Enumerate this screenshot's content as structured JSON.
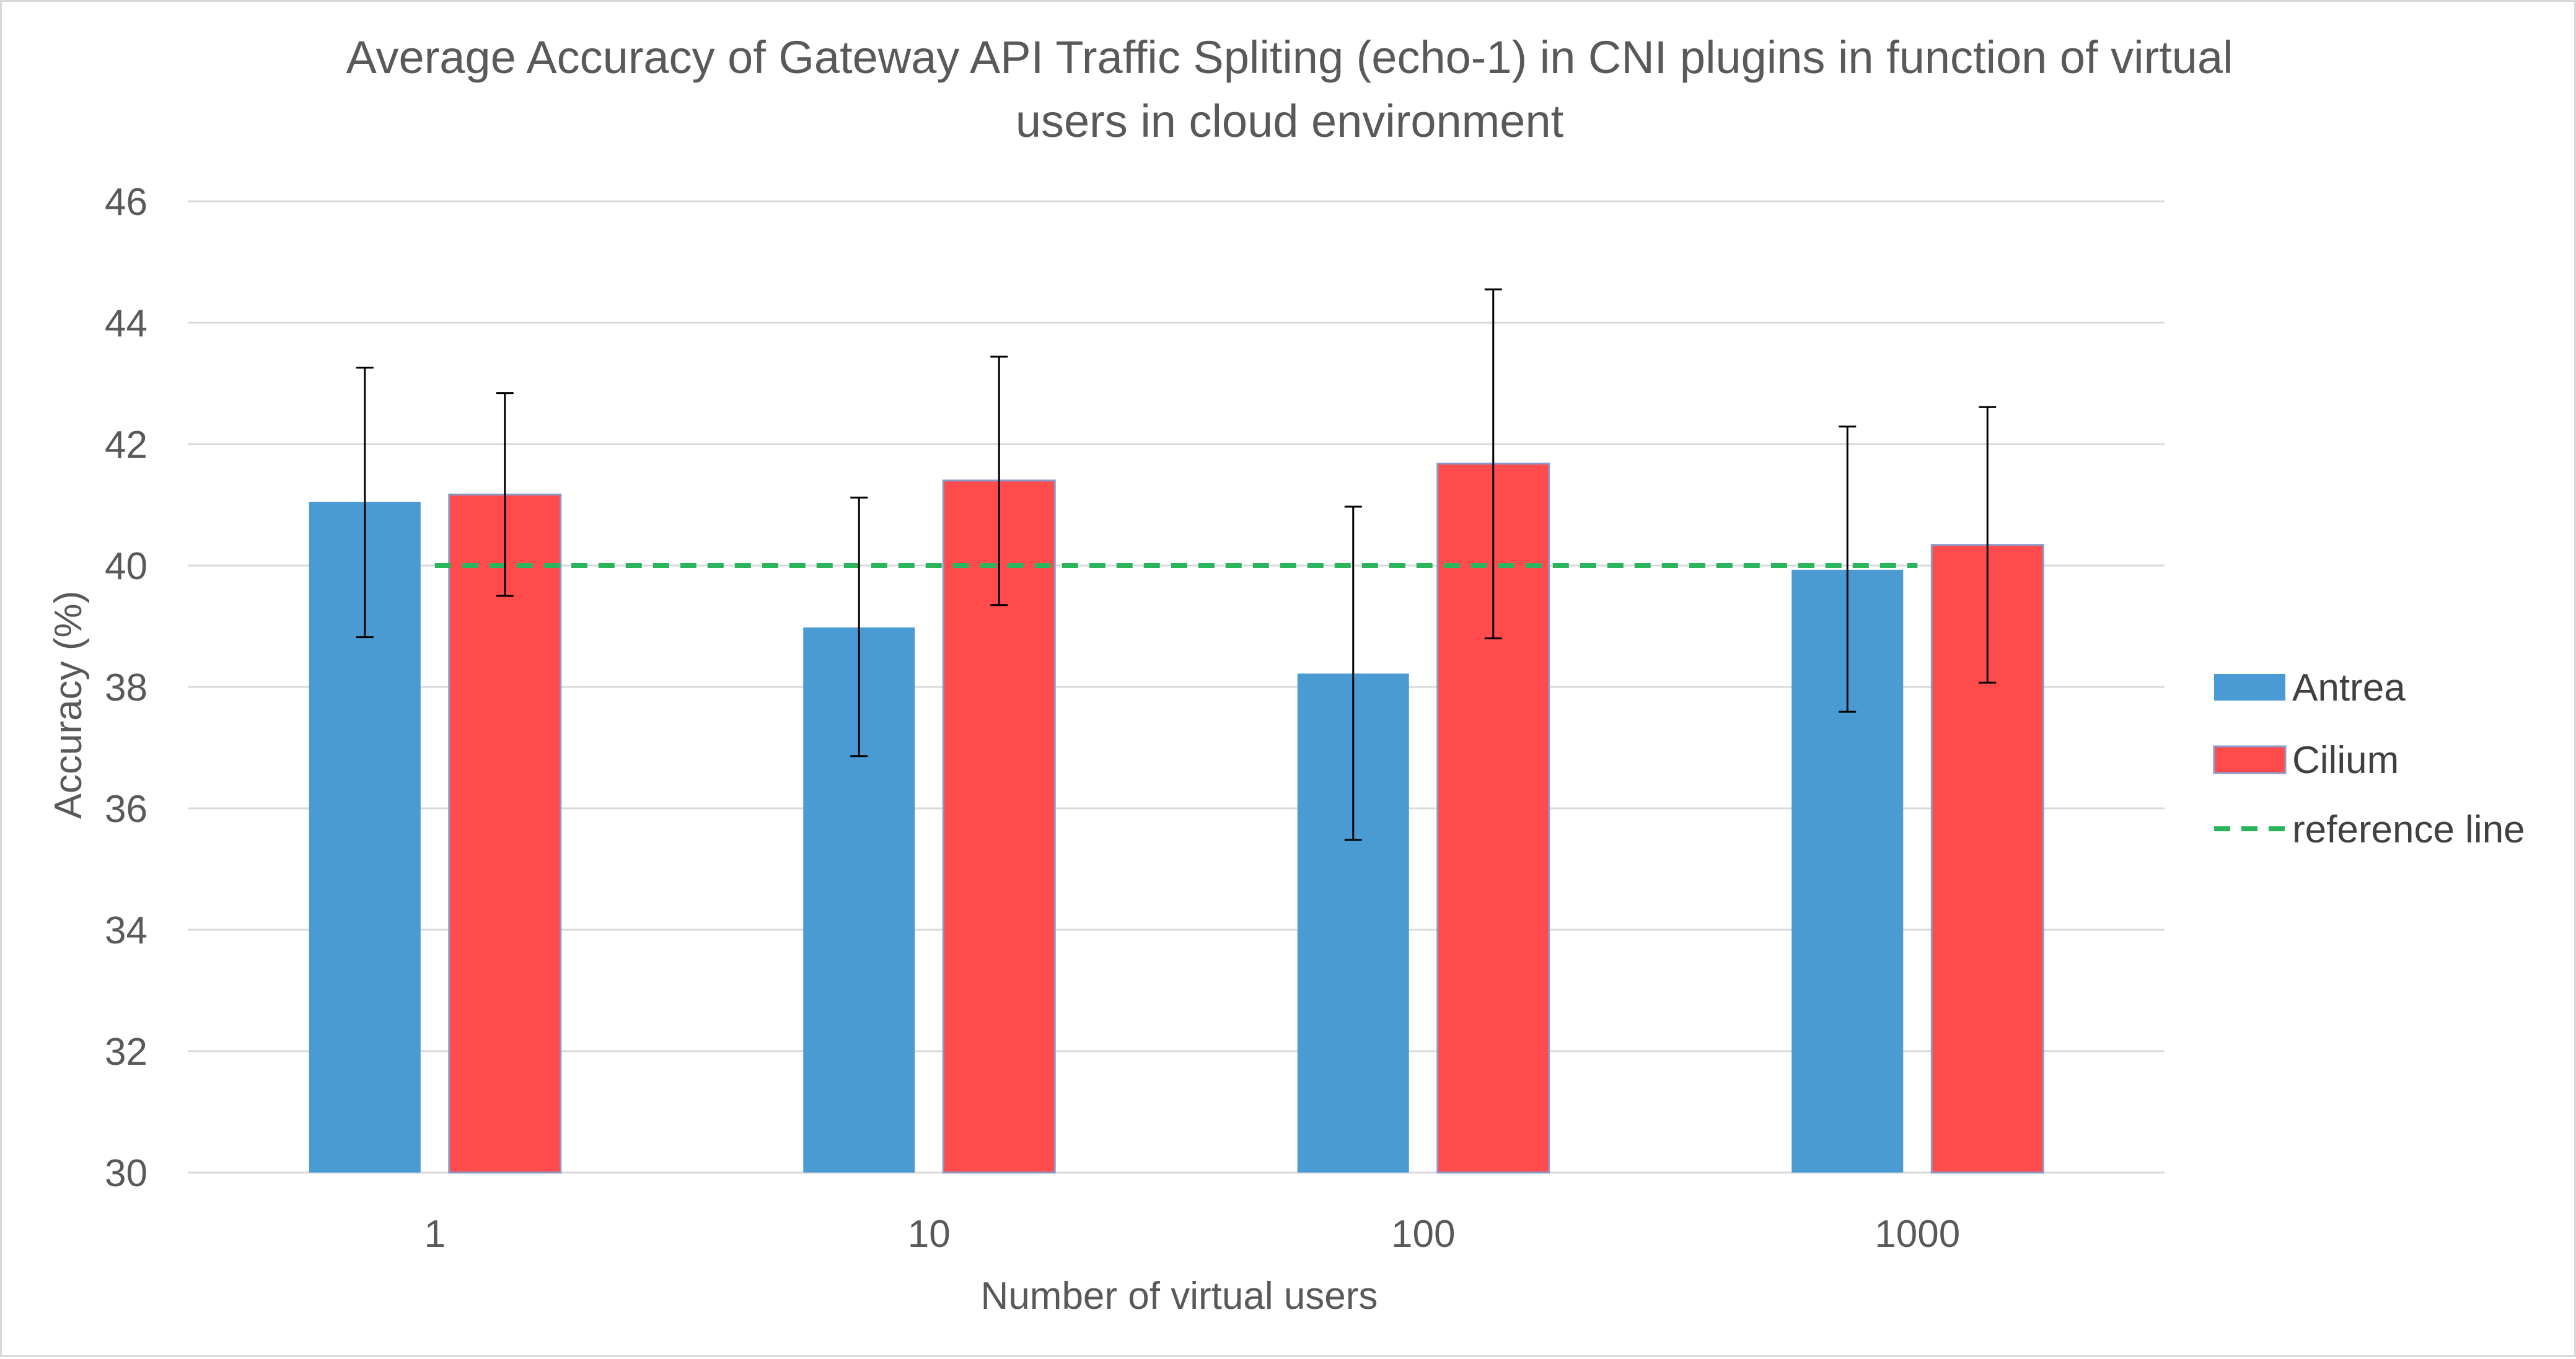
{
  "chart_data": {
    "type": "bar",
    "title": "Average Accuracy of Gateway API Traffic Spliting (echo-1) in CNI plugins in function of virtual users in cloud environment",
    "title_lines": [
      "Average Accuracy of Gateway API Traffic Spliting (echo-1) in CNI plugins in function of virtual",
      "users in cloud environment"
    ],
    "xlabel": "Number of virtual users",
    "ylabel": "Accuracy  (%)",
    "categories": [
      "1",
      "10",
      "100",
      "1000"
    ],
    "ylim": [
      30,
      46
    ],
    "yticks": [
      30,
      32,
      34,
      36,
      38,
      40,
      42,
      44,
      46
    ],
    "grid": true,
    "legend_position": "right",
    "series": [
      {
        "name": "Antrea",
        "color": "#4a9ad4",
        "values": [
          41.05,
          38.98,
          38.22,
          39.93
        ],
        "error_low": [
          38.82,
          36.86,
          35.48,
          37.59
        ],
        "error_high": [
          43.26,
          41.12,
          40.97,
          42.29
        ]
      },
      {
        "name": "Cilium",
        "color": "#ff4b4b",
        "values": [
          41.17,
          41.4,
          41.68,
          40.34
        ],
        "error_low": [
          39.5,
          39.35,
          38.8,
          38.07
        ],
        "error_high": [
          42.84,
          43.44,
          44.55,
          42.61
        ]
      }
    ],
    "reference_line": {
      "name": "reference line",
      "value": 40,
      "color": "#2ab55c",
      "style": "dashed"
    }
  }
}
